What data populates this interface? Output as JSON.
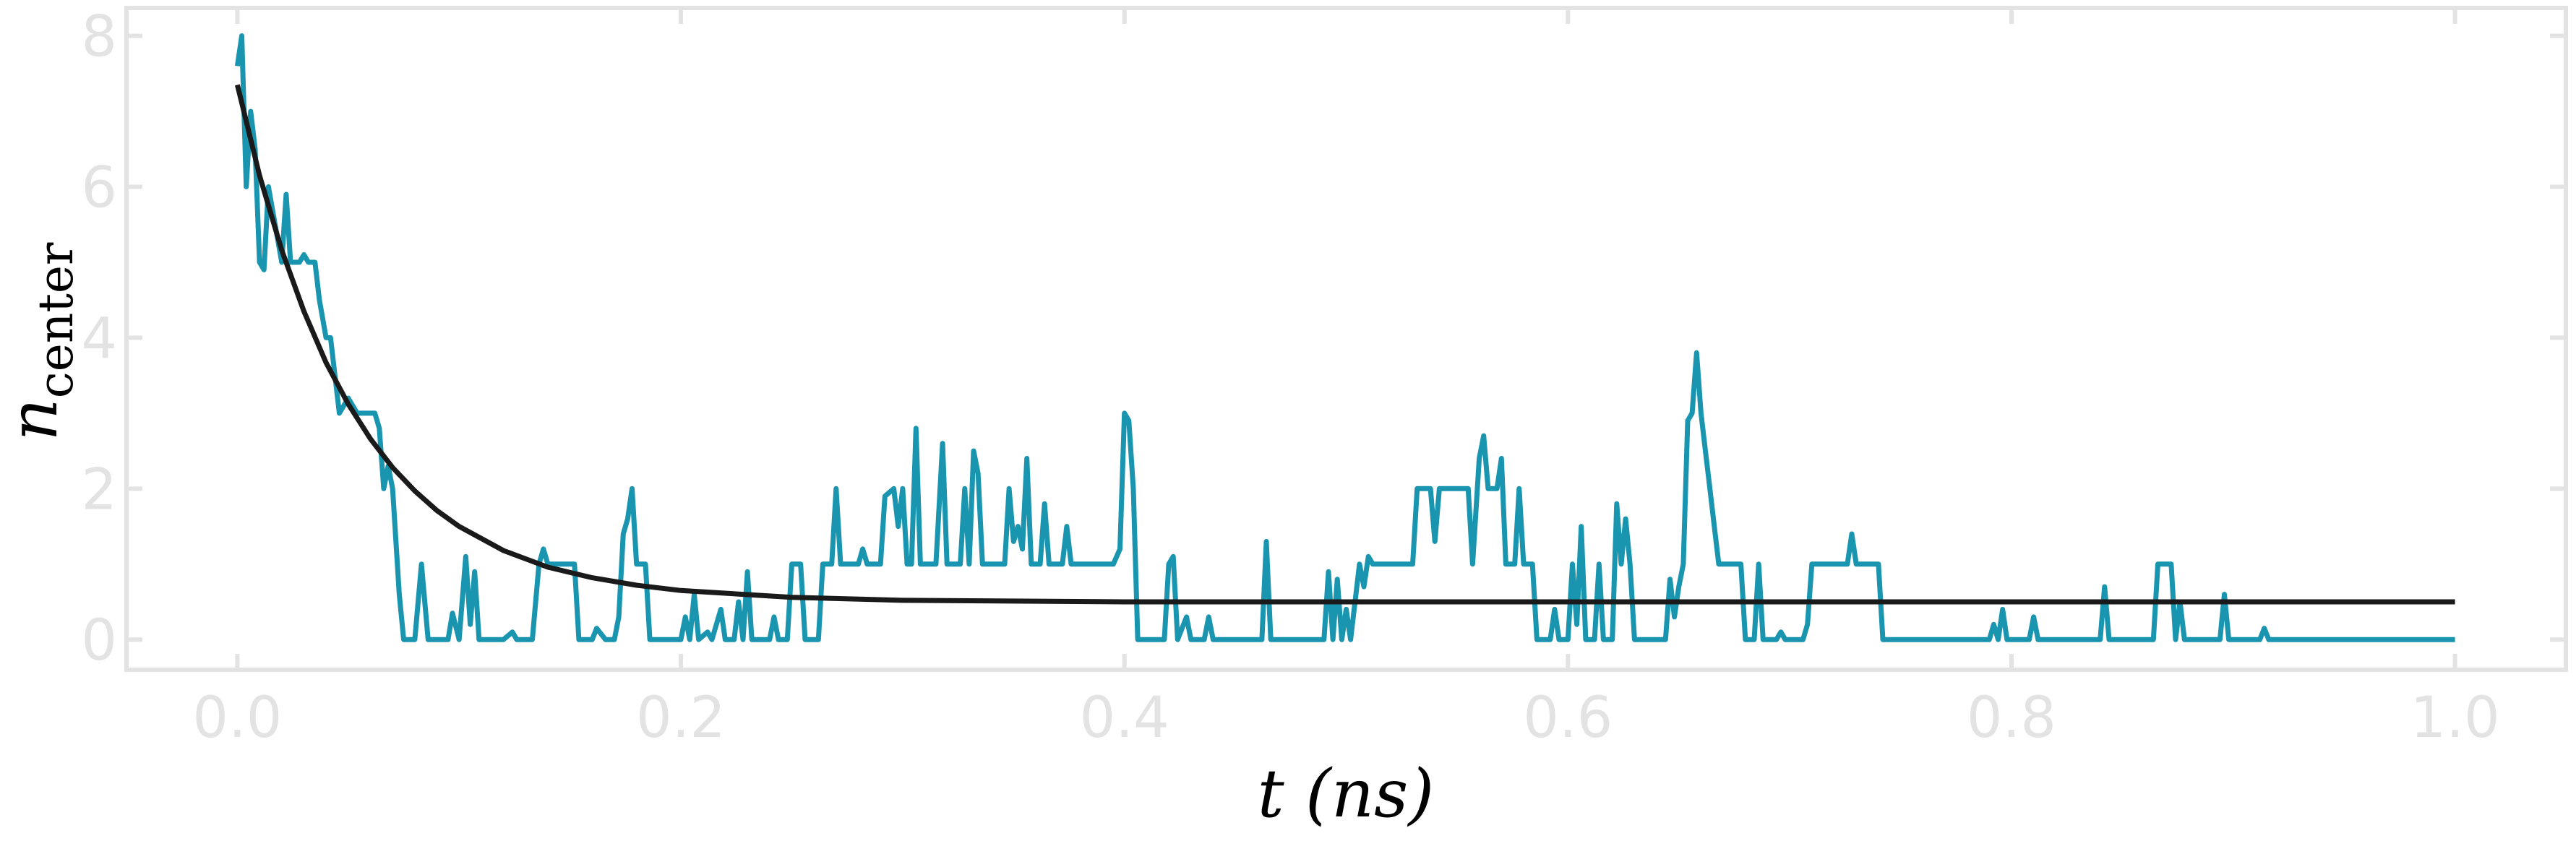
{
  "chart_data": {
    "type": "line",
    "xlabel": "t (ns)",
    "ylabel": {
      "text": "n",
      "subscript": "center"
    },
    "xlim": [
      -0.05,
      1.05
    ],
    "ylim": [
      -0.4,
      8.37
    ],
    "xticks": [
      {
        "value": 0,
        "label": "0.0"
      },
      0.2,
      0.4,
      0.6,
      0.8,
      {
        "value": 1,
        "label": "1.0"
      }
    ],
    "yticks": [
      0,
      2,
      4,
      6,
      8
    ],
    "axis_color": "#e3e3e3",
    "series": [
      {
        "color": "#1a95b0",
        "x": [
          0.0,
          0.002,
          0.004,
          0.006,
          0.008,
          0.01,
          0.012,
          0.014,
          0.017,
          0.02,
          0.022,
          0.024,
          0.028,
          0.03,
          0.032,
          0.035,
          0.037,
          0.04,
          0.042,
          0.044,
          0.046,
          0.05,
          0.054,
          0.062,
          0.064,
          0.066,
          0.068,
          0.07,
          0.073,
          0.075,
          0.08,
          0.083,
          0.086,
          0.095,
          0.097,
          0.1,
          0.103,
          0.105,
          0.107,
          0.109,
          0.12,
          0.124,
          0.126,
          0.133,
          0.136,
          0.138,
          0.14,
          0.152,
          0.154,
          0.16,
          0.162,
          0.166,
          0.17,
          0.172,
          0.174,
          0.176,
          0.178,
          0.18,
          0.184,
          0.186,
          0.2,
          0.202,
          0.204,
          0.206,
          0.208,
          0.212,
          0.214,
          0.218,
          0.22,
          0.224,
          0.226,
          0.228,
          0.23,
          0.232,
          0.24,
          0.242,
          0.244,
          0.248,
          0.25,
          0.254,
          0.256,
          0.262,
          0.264,
          0.268,
          0.27,
          0.272,
          0.28,
          0.282,
          0.284,
          0.29,
          0.292,
          0.296,
          0.298,
          0.3,
          0.302,
          0.304,
          0.306,
          0.308,
          0.315,
          0.318,
          0.32,
          0.326,
          0.328,
          0.33,
          0.332,
          0.334,
          0.336,
          0.346,
          0.348,
          0.35,
          0.352,
          0.354,
          0.356,
          0.358,
          0.362,
          0.364,
          0.366,
          0.372,
          0.374,
          0.376,
          0.395,
          0.398,
          0.4,
          0.402,
          0.404,
          0.406,
          0.418,
          0.42,
          0.422,
          0.424,
          0.428,
          0.43,
          0.436,
          0.438,
          0.44,
          0.462,
          0.464,
          0.466,
          0.49,
          0.492,
          0.494,
          0.496,
          0.498,
          0.5,
          0.502,
          0.506,
          0.508,
          0.51,
          0.512,
          0.53,
          0.532,
          0.538,
          0.54,
          0.542,
          0.555,
          0.557,
          0.56,
          0.562,
          0.564,
          0.568,
          0.57,
          0.572,
          0.576,
          0.578,
          0.58,
          0.584,
          0.586,
          0.592,
          0.594,
          0.596,
          0.6,
          0.602,
          0.604,
          0.606,
          0.608,
          0.612,
          0.614,
          0.616,
          0.62,
          0.622,
          0.624,
          0.626,
          0.628,
          0.63,
          0.644,
          0.646,
          0.648,
          0.65,
          0.652,
          0.654,
          0.656,
          0.658,
          0.66,
          0.662,
          0.664,
          0.666,
          0.668,
          0.678,
          0.68,
          0.684,
          0.686,
          0.688,
          0.694,
          0.696,
          0.698,
          0.706,
          0.708,
          0.71,
          0.726,
          0.728,
          0.73,
          0.74,
          0.742,
          0.79,
          0.792,
          0.794,
          0.796,
          0.798,
          0.808,
          0.81,
          0.812,
          0.84,
          0.842,
          0.844,
          0.864,
          0.866,
          0.872,
          0.874,
          0.876,
          0.878,
          0.894,
          0.896,
          0.898,
          0.912,
          0.914,
          0.916,
          1.0
        ],
        "values": [
          7.6,
          8.0,
          6.0,
          7.0,
          6.5,
          5.0,
          4.9,
          6.0,
          5.5,
          5.0,
          5.9,
          5.0,
          5.0,
          5.1,
          5.0,
          5.0,
          4.5,
          4.0,
          4.0,
          3.5,
          3.0,
          3.2,
          3.0,
          3.0,
          2.8,
          2.0,
          2.3,
          2.0,
          0.6,
          0,
          0,
          1.0,
          0,
          0,
          0.35,
          0,
          1.1,
          0.2,
          0.9,
          0,
          0,
          0.1,
          0,
          0,
          1.0,
          1.2,
          1.0,
          1.0,
          0,
          0,
          0.15,
          0,
          0,
          0.3,
          1.4,
          1.6,
          2.0,
          1.0,
          1.0,
          0,
          0,
          0.3,
          0,
          0.6,
          0,
          0.1,
          0,
          0.4,
          0,
          0,
          0.5,
          0,
          0.9,
          0,
          0,
          0.3,
          0,
          0,
          1.0,
          1.0,
          0,
          0,
          1.0,
          1.0,
          2.0,
          1.0,
          1.0,
          1.2,
          1.0,
          1.0,
          1.9,
          2.0,
          1.5,
          2.0,
          1.0,
          1.0,
          2.8,
          1.0,
          1.0,
          2.6,
          1.0,
          1.0,
          2.0,
          1.0,
          2.5,
          2.2,
          1.0,
          1.0,
          2.0,
          1.3,
          1.5,
          1.2,
          2.4,
          1.0,
          1.0,
          1.8,
          1.0,
          1.0,
          1.5,
          1.0,
          1.0,
          1.2,
          3.0,
          2.9,
          2.0,
          0,
          0,
          1.0,
          1.1,
          0,
          0.3,
          0,
          0,
          0.3,
          0,
          0,
          1.3,
          0,
          0,
          0.9,
          0,
          0.8,
          0,
          0.4,
          0,
          1.0,
          0.7,
          1.1,
          1.0,
          1.0,
          2.0,
          2.0,
          1.3,
          2.0,
          2.0,
          1.0,
          2.4,
          2.7,
          2.0,
          2.0,
          2.4,
          1.0,
          1.0,
          2.0,
          1.0,
          1.0,
          0,
          0,
          0.4,
          0,
          0,
          1.0,
          0.2,
          1.5,
          0,
          0,
          1.0,
          0,
          0,
          1.8,
          1.0,
          1.6,
          1.0,
          0,
          0,
          0.8,
          0.3,
          0.7,
          1.0,
          2.9,
          3.0,
          3.8,
          3.0,
          2.5,
          2.0,
          1.5,
          1.0,
          1.0,
          0,
          0,
          1.0,
          0,
          0,
          0.1,
          0,
          0,
          0.2,
          1.0,
          1.0,
          1.4,
          1.0,
          1.0,
          0,
          0,
          0.2,
          0,
          0.4,
          0,
          0,
          0.3,
          0,
          0,
          0.7,
          0,
          0,
          1.0,
          1.0,
          0,
          0.5,
          0,
          0,
          0.6,
          0,
          0,
          0.15,
          0,
          0
        ]
      },
      {
        "color": "#1a1a1a",
        "x": [
          0,
          0.01,
          0.02,
          0.03,
          0.04,
          0.05,
          0.06,
          0.07,
          0.08,
          0.09,
          0.1,
          0.12,
          0.14,
          0.16,
          0.18,
          0.2,
          0.25,
          0.3,
          0.4,
          1.0
        ],
        "values": [
          7.35,
          6.15,
          5.16,
          4.35,
          3.67,
          3.12,
          2.66,
          2.28,
          1.97,
          1.71,
          1.5,
          1.18,
          0.96,
          0.82,
          0.72,
          0.65,
          0.56,
          0.52,
          0.5,
          0.5
        ]
      }
    ]
  }
}
